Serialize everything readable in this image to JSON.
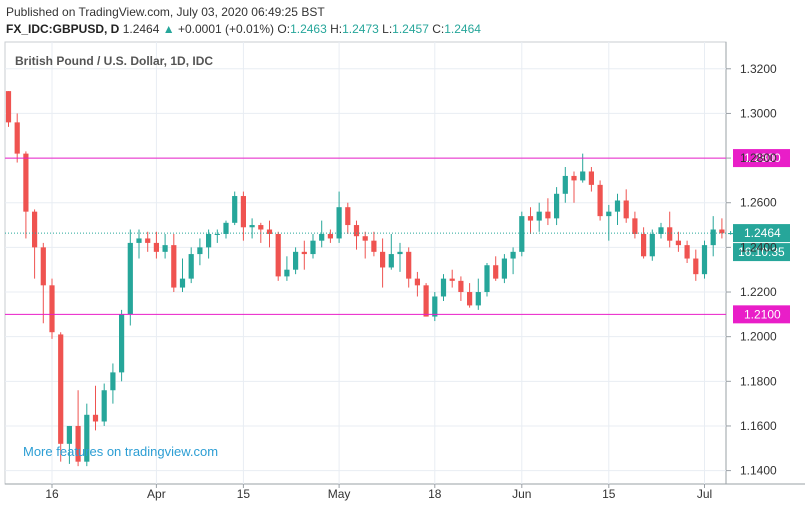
{
  "header": {
    "published": "Published on TradingView.com, July 03, 2020 06:49:25 BST",
    "symbol": "FX_IDC:GBPUSD, D",
    "last": "1.2464",
    "change": "+0.0001 (+0.01%)",
    "o_label": "O:",
    "o_value": "1.2463",
    "h_label": "H:",
    "h_value": "1.2473",
    "l_label": "L:",
    "l_value": "1.2457",
    "c_label": "C:",
    "c_value": "1.2464"
  },
  "colors": {
    "up": "#26a69a",
    "down": "#ef5350",
    "level_line": "#e91ec8",
    "current_line": "#26a69a",
    "clock_bg": "#26a69a"
  },
  "promo_text": "More features on tradingview.com",
  "chart_data": {
    "type": "candlestick",
    "title": "British Pound / U.S. Dollar, 1D, IDC",
    "ylim": [
      1.134,
      1.332
    ],
    "y_ticks": [
      "1.3200",
      "1.3000",
      "1.2800",
      "1.2600",
      "1.2400",
      "1.2200",
      "1.2000",
      "1.1800",
      "1.1600",
      "1.1400"
    ],
    "x_ticks": [
      {
        "label": "16",
        "index": 5
      },
      {
        "label": "Apr",
        "index": 17
      },
      {
        "label": "15",
        "index": 27
      },
      {
        "label": "May",
        "index": 38
      },
      {
        "label": "18",
        "index": 49
      },
      {
        "label": "Jun",
        "index": 59
      },
      {
        "label": "15",
        "index": 69
      },
      {
        "label": "Jul",
        "index": 80
      }
    ],
    "levels": [
      {
        "price": 1.28,
        "label": "1.2800"
      },
      {
        "price": 1.21,
        "label": "1.2100"
      }
    ],
    "current": {
      "price": 1.2464,
      "label": "1.2464",
      "clock": "16:10:35"
    },
    "candles": [
      [
        1.31,
        1.31,
        1.294,
        1.296
      ],
      [
        1.296,
        1.3,
        1.278,
        1.282
      ],
      [
        1.282,
        1.283,
        1.244,
        1.256
      ],
      [
        1.256,
        1.257,
        1.226,
        1.24
      ],
      [
        1.24,
        1.242,
        1.206,
        1.223
      ],
      [
        1.223,
        1.226,
        1.199,
        1.202
      ],
      [
        1.201,
        1.202,
        1.144,
        1.152
      ],
      [
        1.152,
        1.16,
        1.143,
        1.16
      ],
      [
        1.16,
        1.176,
        1.142,
        1.144
      ],
      [
        1.144,
        1.17,
        1.142,
        1.165
      ],
      [
        1.165,
        1.178,
        1.158,
        1.162
      ],
      [
        1.162,
        1.179,
        1.16,
        1.176
      ],
      [
        1.176,
        1.188,
        1.17,
        1.184
      ],
      [
        1.184,
        1.212,
        1.18,
        1.21
      ],
      [
        1.21,
        1.248,
        1.205,
        1.242
      ],
      [
        1.242,
        1.248,
        1.235,
        1.244
      ],
      [
        1.244,
        1.247,
        1.238,
        1.242
      ],
      [
        1.242,
        1.247,
        1.235,
        1.238
      ],
      [
        1.238,
        1.246,
        1.235,
        1.241
      ],
      [
        1.241,
        1.246,
        1.22,
        1.222
      ],
      [
        1.222,
        1.235,
        1.22,
        1.226
      ],
      [
        1.226,
        1.24,
        1.224,
        1.237
      ],
      [
        1.237,
        1.244,
        1.232,
        1.24
      ],
      [
        1.24,
        1.248,
        1.235,
        1.246
      ],
      [
        1.246,
        1.248,
        1.242,
        1.246
      ],
      [
        1.246,
        1.252,
        1.244,
        1.251
      ],
      [
        1.251,
        1.265,
        1.25,
        1.263
      ],
      [
        1.263,
        1.265,
        1.243,
        1.249
      ],
      [
        1.249,
        1.253,
        1.244,
        1.25
      ],
      [
        1.25,
        1.251,
        1.242,
        1.248
      ],
      [
        1.248,
        1.252,
        1.24,
        1.246
      ],
      [
        1.246,
        1.247,
        1.225,
        1.227
      ],
      [
        1.227,
        1.236,
        1.225,
        1.23
      ],
      [
        1.23,
        1.24,
        1.228,
        1.238
      ],
      [
        1.238,
        1.243,
        1.23,
        1.237
      ],
      [
        1.237,
        1.246,
        1.235,
        1.243
      ],
      [
        1.243,
        1.252,
        1.24,
        1.246
      ],
      [
        1.246,
        1.248,
        1.242,
        1.244
      ],
      [
        1.244,
        1.265,
        1.242,
        1.258
      ],
      [
        1.258,
        1.26,
        1.246,
        1.25
      ],
      [
        1.25,
        1.252,
        1.239,
        1.245
      ],
      [
        1.245,
        1.247,
        1.235,
        1.243
      ],
      [
        1.243,
        1.247,
        1.236,
        1.238
      ],
      [
        1.238,
        1.244,
        1.222,
        1.231
      ],
      [
        1.231,
        1.246,
        1.23,
        1.237
      ],
      [
        1.237,
        1.242,
        1.229,
        1.238
      ],
      [
        1.238,
        1.24,
        1.222,
        1.226
      ],
      [
        1.226,
        1.229,
        1.218,
        1.223
      ],
      [
        1.223,
        1.224,
        1.209,
        1.209
      ],
      [
        1.209,
        1.22,
        1.207,
        1.218
      ],
      [
        1.218,
        1.228,
        1.216,
        1.226
      ],
      [
        1.226,
        1.23,
        1.222,
        1.225
      ],
      [
        1.225,
        1.227,
        1.216,
        1.22
      ],
      [
        1.22,
        1.224,
        1.213,
        1.214
      ],
      [
        1.214,
        1.226,
        1.212,
        1.22
      ],
      [
        1.22,
        1.233,
        1.218,
        1.232
      ],
      [
        1.232,
        1.236,
        1.225,
        1.226
      ],
      [
        1.226,
        1.237,
        1.224,
        1.235
      ],
      [
        1.235,
        1.24,
        1.228,
        1.238
      ],
      [
        1.238,
        1.256,
        1.236,
        1.254
      ],
      [
        1.254,
        1.258,
        1.246,
        1.252
      ],
      [
        1.252,
        1.26,
        1.247,
        1.256
      ],
      [
        1.256,
        1.262,
        1.25,
        1.253
      ],
      [
        1.253,
        1.267,
        1.25,
        1.264
      ],
      [
        1.264,
        1.276,
        1.26,
        1.272
      ],
      [
        1.272,
        1.274,
        1.26,
        1.27
      ],
      [
        1.27,
        1.282,
        1.269,
        1.274
      ],
      [
        1.274,
        1.276,
        1.265,
        1.268
      ],
      [
        1.268,
        1.27,
        1.252,
        1.254
      ],
      [
        1.254,
        1.259,
        1.243,
        1.256
      ],
      [
        1.256,
        1.264,
        1.25,
        1.261
      ],
      [
        1.261,
        1.266,
        1.251,
        1.253
      ],
      [
        1.253,
        1.256,
        1.244,
        1.246
      ],
      [
        1.246,
        1.249,
        1.235,
        1.236
      ],
      [
        1.236,
        1.248,
        1.234,
        1.246
      ],
      [
        1.246,
        1.251,
        1.244,
        1.249
      ],
      [
        1.249,
        1.256,
        1.24,
        1.243
      ],
      [
        1.243,
        1.247,
        1.238,
        1.241
      ],
      [
        1.241,
        1.243,
        1.233,
        1.235
      ],
      [
        1.235,
        1.239,
        1.225,
        1.228
      ],
      [
        1.228,
        1.243,
        1.226,
        1.241
      ],
      [
        1.241,
        1.254,
        1.236,
        1.248
      ],
      [
        1.248,
        1.253,
        1.244,
        1.2463
      ],
      [
        1.2463,
        1.2473,
        1.2457,
        1.2464
      ]
    ]
  }
}
